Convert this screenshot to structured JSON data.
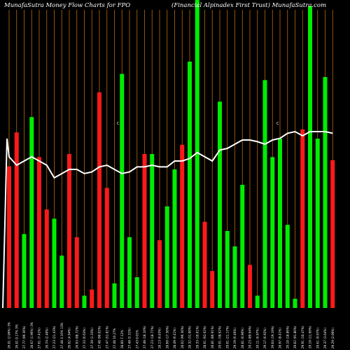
{
  "chart_data": {
    "type": "bar",
    "title_left": "MunafaSutra  Money Flow  Charts for FPO",
    "title_right": "(Financial Alpinadex First Trust) MunafaSutra.com",
    "marker_label": "C",
    "colors": {
      "background": "#000000",
      "up": "#00ee00",
      "down": "#ff1a1a",
      "gridline": "#b86a10",
      "line": "#ffffff"
    },
    "categories": [
      "26.01 (2.06%) 3%",
      "26.01 0.17% 3%",
      "27.77 (96.36%)",
      "28.67 (1.96%) 3%",
      "27.61 (7.41%)",
      "26.74 (2.40%)",
      "27.23 (21.43%)",
      "27.48 3.16% 13%",
      "26.02 (4.94%)",
      "26.93 (98.72%)",
      "27.33 (6.63%)",
      "27.39 (1.33%)",
      "27.48 (90.02%)",
      "27.47 (51.81%)",
      "27.48 10.27%",
      "28.00 7.12%",
      "27.48 (5.31%)",
      "27.43 0.01%",
      "27.48 (18.10%)",
      "27.23 (18.77%)",
      "28.13 (6.03%)",
      "28.60 (17.30%)",
      "28.49 (6.41%)",
      "28.02 (96.30%)",
      "28.32 (31.00%)",
      "28.33 (10.01%)",
      "28.61 (92.62%)",
      "28.81 (86.91%)",
      "29.01 (38.62%)",
      "29.01 (21.17%)",
      "29.19 (6.46%)",
      "28.81 (6.90%)",
      "29.23 (89.64%)",
      "29.11 (6.97%)",
      "29.17 (6.92%)",
      "29.04 (19.19%)",
      "28.97 (8.41%)",
      "29.10 (18.86%)",
      "29.02 (91.80%)",
      "29.91 (10.47%)",
      "29.19 (11.69%)",
      "29.61 (9.97%)",
      "29.37 (3.64%)",
      "29.29 (2.00%)"
    ],
    "directions": [
      "down",
      "down",
      "up",
      "up",
      "down",
      "down",
      "up",
      "up",
      "down",
      "down",
      "up",
      "down",
      "down",
      "down",
      "up",
      "up",
      "up",
      "up",
      "down",
      "up",
      "down",
      "up",
      "up",
      "down",
      "up",
      "up",
      "down",
      "down",
      "up",
      "up",
      "up",
      "up",
      "down",
      "up",
      "up",
      "up",
      "up",
      "up",
      "up",
      "down",
      "up",
      "up",
      "up",
      "down"
    ],
    "values": [
      0.46,
      0.57,
      0.24,
      0.62,
      0.49,
      0.32,
      0.29,
      0.17,
      0.5,
      0.23,
      0.04,
      0.06,
      0.7,
      0.39,
      0.08,
      0.76,
      0.23,
      0.1,
      0.5,
      0.5,
      0.22,
      0.33,
      0.45,
      0.53,
      0.8,
      1.0,
      0.28,
      0.12,
      0.67,
      0.25,
      0.2,
      0.4,
      0.14,
      0.04,
      0.74,
      0.49,
      0.55,
      0.27,
      0.03,
      0.58,
      0.98,
      0.55,
      0.75,
      0.48
    ],
    "overlay_line": [
      0.97,
      0.96,
      0.965,
      0.97,
      0.965,
      0.96,
      0.945,
      0.95,
      0.955,
      0.955,
      0.95,
      0.952,
      0.958,
      0.96,
      0.955,
      0.95,
      0.952,
      0.958,
      0.958,
      0.96,
      0.958,
      0.958,
      0.965,
      0.965,
      0.968,
      0.975,
      0.97,
      0.965,
      0.978,
      0.98,
      0.985,
      0.99,
      0.99,
      0.988,
      0.985,
      0.99,
      0.992,
      0.998,
      1.0,
      0.995,
      1.0,
      1.0,
      1.0,
      0.998
    ]
  }
}
